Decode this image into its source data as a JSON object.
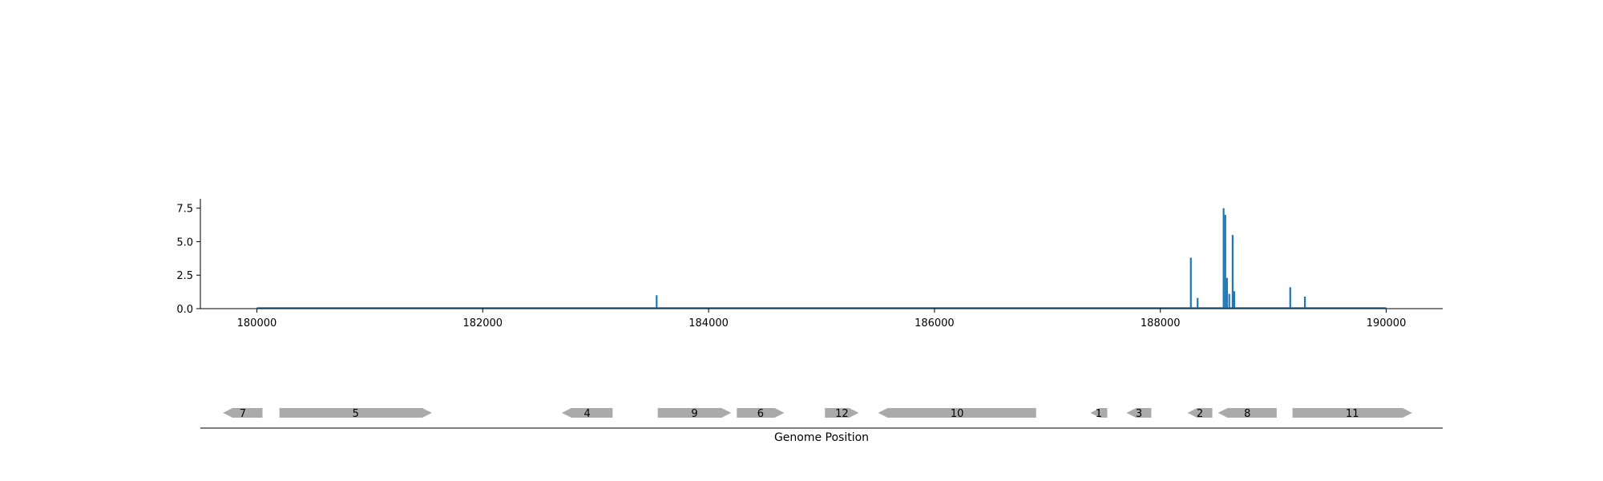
{
  "chart_data": {
    "type": "bar",
    "title": "",
    "xlabel": "Genome Position",
    "ylabel": "",
    "xlim": [
      179500,
      190500
    ],
    "ylim": [
      0,
      8.2
    ],
    "x_ticks": [
      180000,
      182000,
      184000,
      186000,
      188000,
      190000
    ],
    "y_ticks": [
      0.0,
      2.5,
      5.0,
      7.5
    ],
    "grid": false,
    "series": [
      {
        "color": "#1f77b4",
        "baseline": [
          180000,
          190000
        ],
        "points": [
          {
            "x": 183540,
            "y": 1.0
          },
          {
            "x": 188270,
            "y": 3.8
          },
          {
            "x": 188330,
            "y": 0.8
          },
          {
            "x": 188560,
            "y": 7.5
          },
          {
            "x": 188575,
            "y": 7.0
          },
          {
            "x": 188590,
            "y": 2.3
          },
          {
            "x": 188610,
            "y": 1.1
          },
          {
            "x": 188640,
            "y": 5.5
          },
          {
            "x": 188655,
            "y": 1.3
          },
          {
            "x": 189150,
            "y": 1.6
          },
          {
            "x": 189280,
            "y": 0.9
          }
        ]
      }
    ],
    "genes": {
      "color": "#aaaaaa",
      "items": [
        {
          "label": "7",
          "start": 179700,
          "end": 180050,
          "strand": "-"
        },
        {
          "label": "5",
          "start": 180200,
          "end": 181550,
          "strand": "+"
        },
        {
          "label": "4",
          "start": 182700,
          "end": 183150,
          "strand": "-"
        },
        {
          "label": "9",
          "start": 183550,
          "end": 184200,
          "strand": "+"
        },
        {
          "label": "6",
          "start": 184250,
          "end": 184670,
          "strand": "+"
        },
        {
          "label": "12",
          "start": 185030,
          "end": 185330,
          "strand": "+"
        },
        {
          "label": "10",
          "start": 185500,
          "end": 186900,
          "strand": "-"
        },
        {
          "label": "1",
          "start": 187380,
          "end": 187530,
          "strand": "-"
        },
        {
          "label": "3",
          "start": 187700,
          "end": 187920,
          "strand": "-"
        },
        {
          "label": "2",
          "start": 188240,
          "end": 188460,
          "strand": "-"
        },
        {
          "label": "8",
          "start": 188510,
          "end": 189030,
          "strand": "-"
        },
        {
          "label": "11",
          "start": 189170,
          "end": 190230,
          "strand": "+"
        }
      ]
    }
  }
}
